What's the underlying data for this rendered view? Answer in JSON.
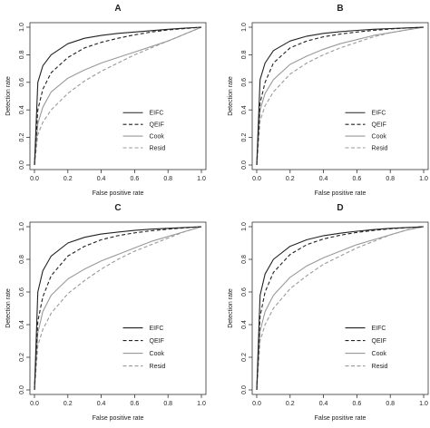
{
  "figure": {
    "panels": [
      "A",
      "B",
      "C",
      "D"
    ]
  },
  "chart_data": [
    {
      "type": "line",
      "title": "A",
      "xlabel": "False positive rate",
      "ylabel": "Detection rate",
      "xlim": [
        0,
        1
      ],
      "ylim": [
        0,
        1
      ],
      "xticks": [
        "0.0",
        "0.2",
        "0.4",
        "0.6",
        "0.8",
        "1.0"
      ],
      "yticks": [
        "0.0",
        "0.2",
        "0.4",
        "0.6",
        "0.8",
        "1.0"
      ],
      "legend_position": "bottom-right",
      "grid": false,
      "x": [
        0,
        0.02,
        0.05,
        0.1,
        0.2,
        0.3,
        0.4,
        0.5,
        0.6,
        0.7,
        0.8,
        0.9,
        1.0
      ],
      "series": [
        {
          "name": "EIFC",
          "style": "solid",
          "color": "#222222",
          "values": [
            0,
            0.6,
            0.72,
            0.8,
            0.88,
            0.92,
            0.94,
            0.955,
            0.965,
            0.975,
            0.985,
            0.993,
            1.0
          ]
        },
        {
          "name": "QEIF",
          "style": "dashed",
          "color": "#222222",
          "values": [
            0,
            0.4,
            0.55,
            0.67,
            0.78,
            0.85,
            0.89,
            0.92,
            0.945,
            0.965,
            0.98,
            0.99,
            1.0
          ]
        },
        {
          "name": "Cook",
          "style": "solid",
          "color": "#999999",
          "values": [
            0,
            0.3,
            0.42,
            0.53,
            0.63,
            0.69,
            0.74,
            0.78,
            0.82,
            0.86,
            0.9,
            0.95,
            1.0
          ]
        },
        {
          "name": "Resid",
          "style": "dashed",
          "color": "#999999",
          "values": [
            0,
            0.22,
            0.31,
            0.4,
            0.52,
            0.61,
            0.68,
            0.74,
            0.8,
            0.85,
            0.9,
            0.95,
            1.0
          ]
        }
      ]
    },
    {
      "type": "line",
      "title": "B",
      "xlabel": "False positive rate",
      "ylabel": "Detection rate",
      "xlim": [
        0,
        1
      ],
      "ylim": [
        0,
        1
      ],
      "xticks": [
        "0.0",
        "0.2",
        "0.4",
        "0.6",
        "0.8",
        "1.0"
      ],
      "yticks": [
        "0.0",
        "0.2",
        "0.4",
        "0.6",
        "0.8",
        "1.0"
      ],
      "legend_position": "bottom-right",
      "grid": false,
      "x": [
        0,
        0.02,
        0.05,
        0.1,
        0.2,
        0.3,
        0.4,
        0.5,
        0.6,
        0.7,
        0.8,
        0.9,
        1.0
      ],
      "series": [
        {
          "name": "EIFC",
          "style": "solid",
          "color": "#222222",
          "values": [
            0,
            0.62,
            0.74,
            0.83,
            0.9,
            0.935,
            0.955,
            0.968,
            0.977,
            0.985,
            0.99,
            0.995,
            1.0
          ]
        },
        {
          "name": "QEIF",
          "style": "dashed",
          "color": "#222222",
          "values": [
            0,
            0.45,
            0.6,
            0.74,
            0.85,
            0.9,
            0.93,
            0.95,
            0.965,
            0.977,
            0.987,
            0.994,
            1.0
          ]
        },
        {
          "name": "Cook",
          "style": "solid",
          "color": "#999999",
          "values": [
            0,
            0.4,
            0.52,
            0.62,
            0.73,
            0.79,
            0.84,
            0.88,
            0.91,
            0.94,
            0.96,
            0.98,
            1.0
          ]
        },
        {
          "name": "Resid",
          "style": "dashed",
          "color": "#999999",
          "values": [
            0,
            0.32,
            0.43,
            0.53,
            0.66,
            0.74,
            0.8,
            0.85,
            0.89,
            0.93,
            0.96,
            0.98,
            1.0
          ]
        }
      ]
    },
    {
      "type": "line",
      "title": "C",
      "xlabel": "False positive rate",
      "ylabel": "Detection rate",
      "xlim": [
        0,
        1
      ],
      "ylim": [
        0,
        1
      ],
      "xticks": [
        "0.0",
        "0.2",
        "0.4",
        "0.6",
        "0.8",
        "1.0"
      ],
      "yticks": [
        "0.0",
        "0.2",
        "0.4",
        "0.6",
        "0.8",
        "1.0"
      ],
      "legend_position": "bottom-right",
      "grid": false,
      "x": [
        0,
        0.02,
        0.05,
        0.1,
        0.2,
        0.3,
        0.4,
        0.5,
        0.6,
        0.7,
        0.8,
        0.9,
        1.0
      ],
      "series": [
        {
          "name": "EIFC",
          "style": "solid",
          "color": "#222222",
          "values": [
            0,
            0.6,
            0.73,
            0.82,
            0.9,
            0.935,
            0.955,
            0.967,
            0.977,
            0.985,
            0.99,
            0.995,
            1.0
          ]
        },
        {
          "name": "QEIF",
          "style": "dashed",
          "color": "#222222",
          "values": [
            0,
            0.42,
            0.57,
            0.7,
            0.82,
            0.88,
            0.92,
            0.945,
            0.962,
            0.975,
            0.985,
            0.993,
            1.0
          ]
        },
        {
          "name": "Cook",
          "style": "solid",
          "color": "#999999",
          "values": [
            0,
            0.35,
            0.48,
            0.58,
            0.68,
            0.74,
            0.79,
            0.83,
            0.87,
            0.91,
            0.94,
            0.97,
            1.0
          ]
        },
        {
          "name": "Resid",
          "style": "dashed",
          "color": "#999999",
          "values": [
            0,
            0.27,
            0.37,
            0.47,
            0.59,
            0.67,
            0.74,
            0.8,
            0.85,
            0.89,
            0.93,
            0.97,
            1.0
          ]
        }
      ]
    },
    {
      "type": "line",
      "title": "D",
      "xlabel": "False positive rate",
      "ylabel": "Detection rate",
      "xlim": [
        0,
        1
      ],
      "ylim": [
        0,
        1
      ],
      "xticks": [
        "0.0",
        "0.2",
        "0.4",
        "0.6",
        "0.8",
        "1.0"
      ],
      "yticks": [
        "0.0",
        "0.2",
        "0.4",
        "0.6",
        "0.8",
        "1.0"
      ],
      "legend_position": "bottom-right",
      "grid": false,
      "x": [
        0,
        0.02,
        0.05,
        0.1,
        0.2,
        0.3,
        0.4,
        0.5,
        0.6,
        0.7,
        0.8,
        0.9,
        1.0
      ],
      "series": [
        {
          "name": "EIFC",
          "style": "solid",
          "color": "#222222",
          "values": [
            0,
            0.58,
            0.71,
            0.8,
            0.88,
            0.92,
            0.945,
            0.96,
            0.972,
            0.982,
            0.99,
            0.995,
            1.0
          ]
        },
        {
          "name": "QEIF",
          "style": "dashed",
          "color": "#222222",
          "values": [
            0,
            0.45,
            0.6,
            0.72,
            0.83,
            0.89,
            0.925,
            0.948,
            0.965,
            0.977,
            0.987,
            0.994,
            1.0
          ]
        },
        {
          "name": "Cook",
          "style": "solid",
          "color": "#999999",
          "values": [
            0,
            0.36,
            0.48,
            0.58,
            0.69,
            0.76,
            0.81,
            0.85,
            0.89,
            0.92,
            0.95,
            0.98,
            1.0
          ]
        },
        {
          "name": "Resid",
          "style": "dashed",
          "color": "#999999",
          "values": [
            0,
            0.3,
            0.4,
            0.5,
            0.62,
            0.7,
            0.77,
            0.82,
            0.87,
            0.91,
            0.95,
            0.98,
            1.0
          ]
        }
      ]
    }
  ]
}
